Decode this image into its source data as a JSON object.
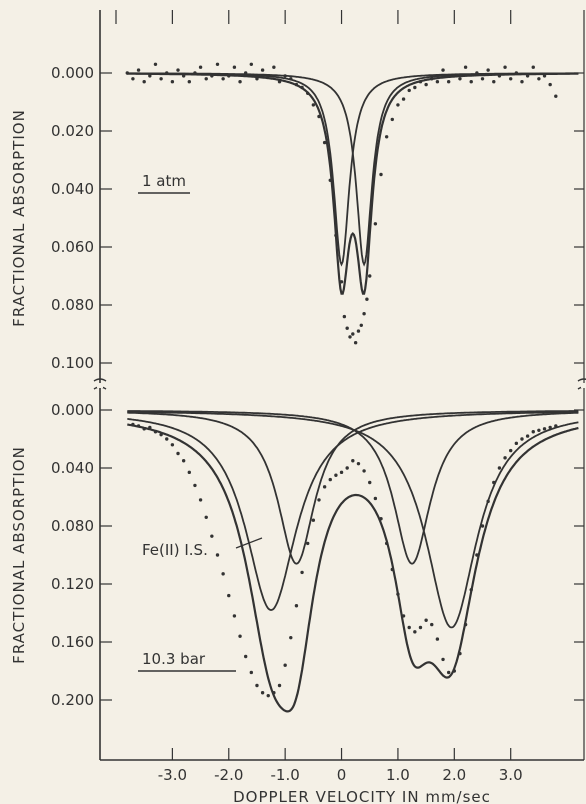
{
  "chart_data": {
    "type": "scatter",
    "xlabel": "DOPPLER VELOCITY IN mm/sec",
    "x_ticks": [
      -3.0,
      -2.0,
      -1.0,
      0,
      1.0,
      2.0,
      3.0
    ],
    "x_tick_labels": [
      "-3.0",
      "-2.0",
      "-1.0",
      "0",
      "1.0",
      "2.0",
      "3.0"
    ],
    "xlim": [
      -4.0,
      4.3
    ],
    "panels": [
      {
        "name": "top",
        "annotation": "1 atm",
        "ylabel": "FRACTIONAL ABSORPTION",
        "ylim": [
          0.0,
          0.1
        ],
        "y_inverted": true,
        "y_ticks": [
          0.0,
          0.02,
          0.04,
          0.06,
          0.08,
          0.1
        ],
        "y_tick_labels": [
          "0.000",
          "0.020",
          "0.040",
          "0.060",
          "0.080",
          "0.100"
        ],
        "components": [
          {
            "center": 0.0,
            "hwhm": 0.17,
            "depth": 0.066
          },
          {
            "center": 0.4,
            "hwhm": 0.17,
            "depth": 0.066
          }
        ],
        "scatter_points": [
          [
            -3.8,
            0.0
          ],
          [
            -3.7,
            0.002
          ],
          [
            -3.6,
            -0.001
          ],
          [
            -3.5,
            0.003
          ],
          [
            -3.4,
            0.001
          ],
          [
            -3.3,
            -0.003
          ],
          [
            -3.2,
            0.002
          ],
          [
            -3.1,
            0.0
          ],
          [
            -3.0,
            0.003
          ],
          [
            -2.9,
            -0.001
          ],
          [
            -2.8,
            0.001
          ],
          [
            -2.7,
            0.003
          ],
          [
            -2.6,
            0.0
          ],
          [
            -2.5,
            -0.002
          ],
          [
            -2.4,
            0.002
          ],
          [
            -2.3,
            0.001
          ],
          [
            -2.2,
            -0.003
          ],
          [
            -2.1,
            0.002
          ],
          [
            -2.0,
            0.001
          ],
          [
            -1.9,
            -0.002
          ],
          [
            -1.8,
            0.003
          ],
          [
            -1.7,
            0.0
          ],
          [
            -1.6,
            -0.003
          ],
          [
            -1.5,
            0.002
          ],
          [
            -1.4,
            -0.001
          ],
          [
            -1.3,
            0.001
          ],
          [
            -1.2,
            -0.002
          ],
          [
            -1.1,
            0.003
          ],
          [
            -1.0,
            0.001
          ],
          [
            -0.9,
            0.002
          ],
          [
            -0.8,
            0.004
          ],
          [
            -0.7,
            0.005
          ],
          [
            -0.6,
            0.007
          ],
          [
            -0.5,
            0.011
          ],
          [
            -0.4,
            0.015
          ],
          [
            -0.3,
            0.024
          ],
          [
            -0.2,
            0.037
          ],
          [
            -0.1,
            0.056
          ],
          [
            0.0,
            0.072
          ],
          [
            0.05,
            0.084
          ],
          [
            0.1,
            0.088
          ],
          [
            0.15,
            0.091
          ],
          [
            0.2,
            0.09
          ],
          [
            0.25,
            0.093
          ],
          [
            0.3,
            0.089
          ],
          [
            0.35,
            0.087
          ],
          [
            0.4,
            0.083
          ],
          [
            0.45,
            0.078
          ],
          [
            0.5,
            0.07
          ],
          [
            0.6,
            0.052
          ],
          [
            0.7,
            0.035
          ],
          [
            0.8,
            0.022
          ],
          [
            0.9,
            0.016
          ],
          [
            1.0,
            0.011
          ],
          [
            1.1,
            0.009
          ],
          [
            1.2,
            0.006
          ],
          [
            1.3,
            0.005
          ],
          [
            1.4,
            0.003
          ],
          [
            1.5,
            0.004
          ],
          [
            1.6,
            0.002
          ],
          [
            1.7,
            0.003
          ],
          [
            1.8,
            -0.001
          ],
          [
            1.9,
            0.003
          ],
          [
            2.0,
            0.001
          ],
          [
            2.1,
            0.002
          ],
          [
            2.2,
            -0.002
          ],
          [
            2.3,
            0.003
          ],
          [
            2.4,
            0.0
          ],
          [
            2.5,
            0.002
          ],
          [
            2.6,
            -0.001
          ],
          [
            2.7,
            0.003
          ],
          [
            2.8,
            0.001
          ],
          [
            2.9,
            -0.002
          ],
          [
            3.0,
            0.002
          ],
          [
            3.1,
            0.0
          ],
          [
            3.2,
            0.003
          ],
          [
            3.3,
            0.001
          ],
          [
            3.4,
            -0.002
          ],
          [
            3.5,
            0.002
          ],
          [
            3.6,
            0.001
          ],
          [
            3.7,
            0.004
          ],
          [
            3.8,
            0.008
          ]
        ]
      },
      {
        "name": "bottom",
        "annotation": "10.3 bar",
        "ylabel": "FRACTIONAL ABSORPTION",
        "ylim": [
          0.0,
          0.2
        ],
        "y_inverted": true,
        "y_ticks": [
          0.0,
          0.04,
          0.08,
          0.12,
          0.16,
          0.2
        ],
        "y_tick_labels": [
          "0.000",
          "0.040",
          "0.080",
          "0.120",
          "0.160",
          "0.200"
        ],
        "components": [
          {
            "center": -1.25,
            "hwhm": 0.55,
            "depth": 0.138
          },
          {
            "center": -0.8,
            "hwhm": 0.4,
            "depth": 0.106
          },
          {
            "center": 1.25,
            "hwhm": 0.4,
            "depth": 0.106
          },
          {
            "center": 1.95,
            "hwhm": 0.55,
            "depth": 0.15
          }
        ],
        "annotation_label": "Fe(II) I.S.",
        "scatter_points": [
          [
            -3.7,
            0.01
          ],
          [
            -3.6,
            0.011
          ],
          [
            -3.5,
            0.013
          ],
          [
            -3.4,
            0.012
          ],
          [
            -3.3,
            0.015
          ],
          [
            -3.2,
            0.017
          ],
          [
            -3.1,
            0.02
          ],
          [
            -3.0,
            0.024
          ],
          [
            -2.9,
            0.03
          ],
          [
            -2.8,
            0.035
          ],
          [
            -2.7,
            0.043
          ],
          [
            -2.6,
            0.052
          ],
          [
            -2.5,
            0.062
          ],
          [
            -2.4,
            0.074
          ],
          [
            -2.3,
            0.087
          ],
          [
            -2.2,
            0.1
          ],
          [
            -2.1,
            0.113
          ],
          [
            -2.0,
            0.128
          ],
          [
            -1.9,
            0.142
          ],
          [
            -1.8,
            0.156
          ],
          [
            -1.7,
            0.17
          ],
          [
            -1.6,
            0.181
          ],
          [
            -1.5,
            0.19
          ],
          [
            -1.4,
            0.195
          ],
          [
            -1.3,
            0.197
          ],
          [
            -1.2,
            0.195
          ],
          [
            -1.1,
            0.19
          ],
          [
            -1.0,
            0.176
          ],
          [
            -0.9,
            0.157
          ],
          [
            -0.8,
            0.135
          ],
          [
            -0.7,
            0.112
          ],
          [
            -0.6,
            0.092
          ],
          [
            -0.5,
            0.076
          ],
          [
            -0.4,
            0.062
          ],
          [
            -0.3,
            0.053
          ],
          [
            -0.2,
            0.048
          ],
          [
            -0.1,
            0.045
          ],
          [
            0.0,
            0.043
          ],
          [
            0.1,
            0.04
          ],
          [
            0.2,
            0.035
          ],
          [
            0.3,
            0.037
          ],
          [
            0.4,
            0.042
          ],
          [
            0.5,
            0.05
          ],
          [
            0.6,
            0.061
          ],
          [
            0.7,
            0.075
          ],
          [
            0.8,
            0.092
          ],
          [
            0.9,
            0.11
          ],
          [
            1.0,
            0.127
          ],
          [
            1.1,
            0.142
          ],
          [
            1.2,
            0.15
          ],
          [
            1.3,
            0.153
          ],
          [
            1.4,
            0.15
          ],
          [
            1.5,
            0.145
          ],
          [
            1.6,
            0.148
          ],
          [
            1.7,
            0.158
          ],
          [
            1.8,
            0.172
          ],
          [
            1.9,
            0.181
          ],
          [
            2.0,
            0.18
          ],
          [
            2.1,
            0.168
          ],
          [
            2.2,
            0.148
          ],
          [
            2.3,
            0.124
          ],
          [
            2.4,
            0.1
          ],
          [
            2.5,
            0.08
          ],
          [
            2.6,
            0.063
          ],
          [
            2.7,
            0.05
          ],
          [
            2.8,
            0.04
          ],
          [
            2.9,
            0.033
          ],
          [
            3.0,
            0.028
          ],
          [
            3.1,
            0.023
          ],
          [
            3.2,
            0.02
          ],
          [
            3.3,
            0.018
          ],
          [
            3.4,
            0.015
          ],
          [
            3.5,
            0.014
          ],
          [
            3.6,
            0.013
          ],
          [
            3.7,
            0.012
          ],
          [
            3.8,
            0.011
          ]
        ]
      }
    ]
  },
  "colors": {
    "background": "#f4f0e6",
    "ink": "#333333"
  }
}
